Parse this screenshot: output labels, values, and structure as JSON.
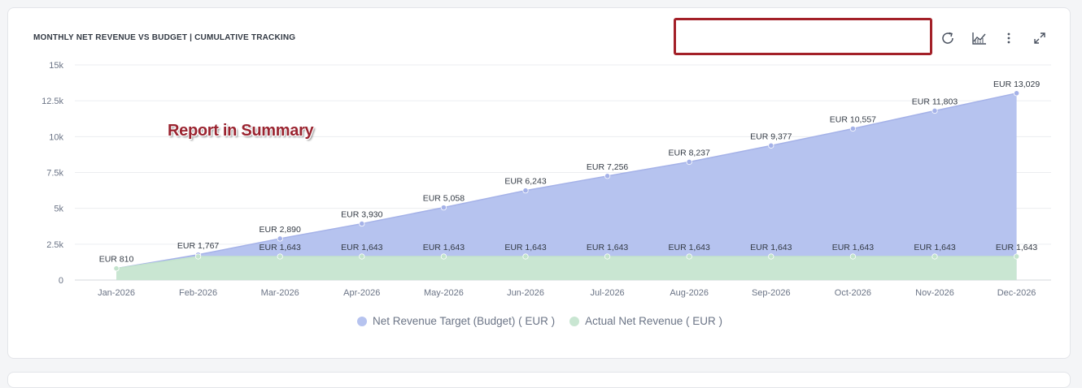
{
  "header": {
    "title": "MONTHLY NET REVENUE VS BUDGET | CUMULATIVE TRACKING",
    "search_value": ""
  },
  "toolbar": {
    "refresh_icon": "refresh-icon",
    "chart_type_icon": "area-chart-icon",
    "menu_icon": "more-vertical-icon",
    "expand_icon": "expand-icon"
  },
  "annotation": "Report in Summary",
  "colors": {
    "budget_fill": "#b6c3ef",
    "budget_line": "#a5b2e8",
    "actual_fill": "#c9e6d2",
    "actual_line": "#c3e3cc"
  },
  "chart_data": {
    "type": "area",
    "title": "MONTHLY NET REVENUE VS BUDGET | CUMULATIVE TRACKING",
    "categories": [
      "Jan-2026",
      "Feb-2026",
      "Mar-2026",
      "Apr-2026",
      "May-2026",
      "Jun-2026",
      "Jul-2026",
      "Aug-2026",
      "Sep-2026",
      "Oct-2026",
      "Nov-2026",
      "Dec-2026"
    ],
    "ylim": [
      0,
      15000
    ],
    "yticks": [
      0,
      2500,
      5000,
      7500,
      10000,
      12500,
      15000
    ],
    "ytick_labels": [
      "0",
      "2.5k",
      "5k",
      "7.5k",
      "10k",
      "12.5k",
      "15k"
    ],
    "grid": true,
    "legend": "bottom-center",
    "series": [
      {
        "name": "Net Revenue Target (Budget) ( EUR )",
        "values": [
          810,
          1767,
          2890,
          3930,
          5058,
          6243,
          7256,
          8237,
          9377,
          10557,
          11803,
          13029
        ],
        "labels": [
          "EUR 810",
          "EUR 1,767",
          "EUR 2,890",
          "EUR 3,930",
          "EUR 5,058",
          "EUR 6,243",
          "EUR 7,256",
          "EUR 8,237",
          "EUR 9,377",
          "EUR 10,557",
          "EUR 11,803",
          "EUR 13,029"
        ]
      },
      {
        "name": "Actual Net Revenue ( EUR )",
        "values": [
          810,
          1643,
          1643,
          1643,
          1643,
          1643,
          1643,
          1643,
          1643,
          1643,
          1643,
          1643
        ],
        "labels": [
          "",
          "",
          "EUR 1,643",
          "EUR 1,643",
          "EUR 1,643",
          "EUR 1,643",
          "EUR 1,643",
          "EUR 1,643",
          "EUR 1,643",
          "EUR 1,643",
          "EUR 1,643",
          "EUR 1,643"
        ]
      }
    ]
  }
}
